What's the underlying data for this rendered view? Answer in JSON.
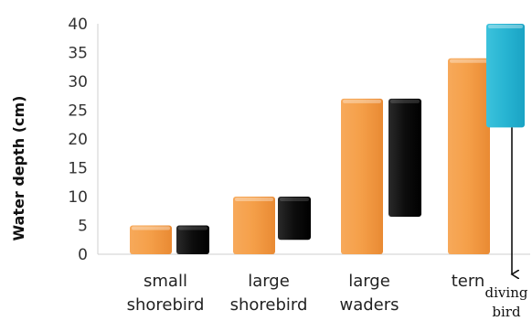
{
  "chart_data": {
    "type": "bar",
    "title": "",
    "xlabel": "",
    "ylabel": "Water depth (cm)",
    "ylim": [
      0,
      40
    ],
    "yticks": [
      0,
      5,
      10,
      15,
      20,
      25,
      30,
      35,
      40
    ],
    "grid": false,
    "legend": "none",
    "categories": [
      [
        "small",
        "shorebird"
      ],
      [
        "large",
        "shorebird"
      ],
      [
        "large",
        "waders"
      ],
      [
        "tern",
        ""
      ]
    ],
    "series": [
      {
        "role": "foraging range",
        "color": "#f5a04a",
        "values": [
          [
            0,
            5
          ],
          [
            0,
            10
          ],
          [
            0,
            27
          ],
          [
            0,
            34
          ]
        ]
      },
      {
        "role": "foraging range",
        "color": "#111111",
        "values": [
          [
            0,
            5
          ],
          [
            2.5,
            10
          ],
          [
            6.5,
            27
          ],
          null
        ]
      },
      {
        "role": "foraging range",
        "color": "#2bb8d4",
        "values": [
          null,
          null,
          null,
          [
            22,
            40
          ]
        ]
      }
    ],
    "annotations": [
      {
        "text_lines": [
          "diving",
          "bird"
        ],
        "arrow": "down",
        "attached_to": "tern"
      }
    ]
  }
}
